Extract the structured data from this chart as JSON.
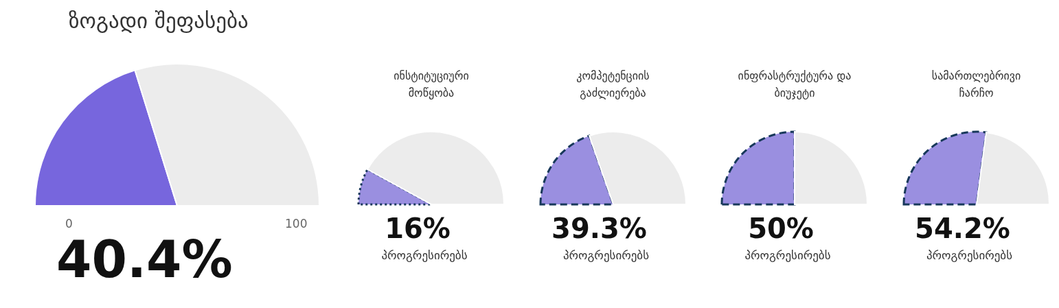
{
  "chart_data": [
    {
      "type": "pie",
      "title": "ზოგადი შეფასება",
      "categories": [
        null,
        null
      ],
      "values": [
        40.4,
        59.6
      ],
      "colors": [
        "#7766dd",
        "#ececec"
      ],
      "annotations": [
        "0",
        "100",
        "40.4%"
      ]
    },
    {
      "type": "pie",
      "title": "ინსტიტუციური მოწყობა",
      "subtitle": "პროგრესირებს",
      "categories": [
        null,
        null
      ],
      "values": [
        16,
        84
      ],
      "colors": [
        "#9a8fe0",
        "#ececec"
      ],
      "annotations": [
        "16%"
      ],
      "line_style": "dotted"
    },
    {
      "type": "pie",
      "title": "კომპეტენციის გაძლიერება",
      "subtitle": "პროგრესირებს",
      "categories": [
        null,
        null
      ],
      "values": [
        39.3,
        60.7
      ],
      "colors": [
        "#9a8fe0",
        "#ececec"
      ],
      "annotations": [
        "39.3%"
      ],
      "line_style": "dashed"
    },
    {
      "type": "pie",
      "title": "ინფრასტრუქტურა და ბიუჯეტი",
      "subtitle": "პროგრესირებს",
      "categories": [
        null,
        null
      ],
      "values": [
        50,
        50
      ],
      "colors": [
        "#9a8fe0",
        "#ececec"
      ],
      "annotations": [
        "50%"
      ],
      "line_style": "dashed"
    },
    {
      "type": "pie",
      "title": "სამართლებრივი ჩარჩო",
      "subtitle": "პროგრესირებს",
      "categories": [
        null,
        null
      ],
      "values": [
        54.2,
        45.8
      ],
      "colors": [
        "#9a8fe0",
        "#ececec"
      ],
      "annotations": [
        "54.2%"
      ],
      "line_style": "dashed"
    }
  ]
}
